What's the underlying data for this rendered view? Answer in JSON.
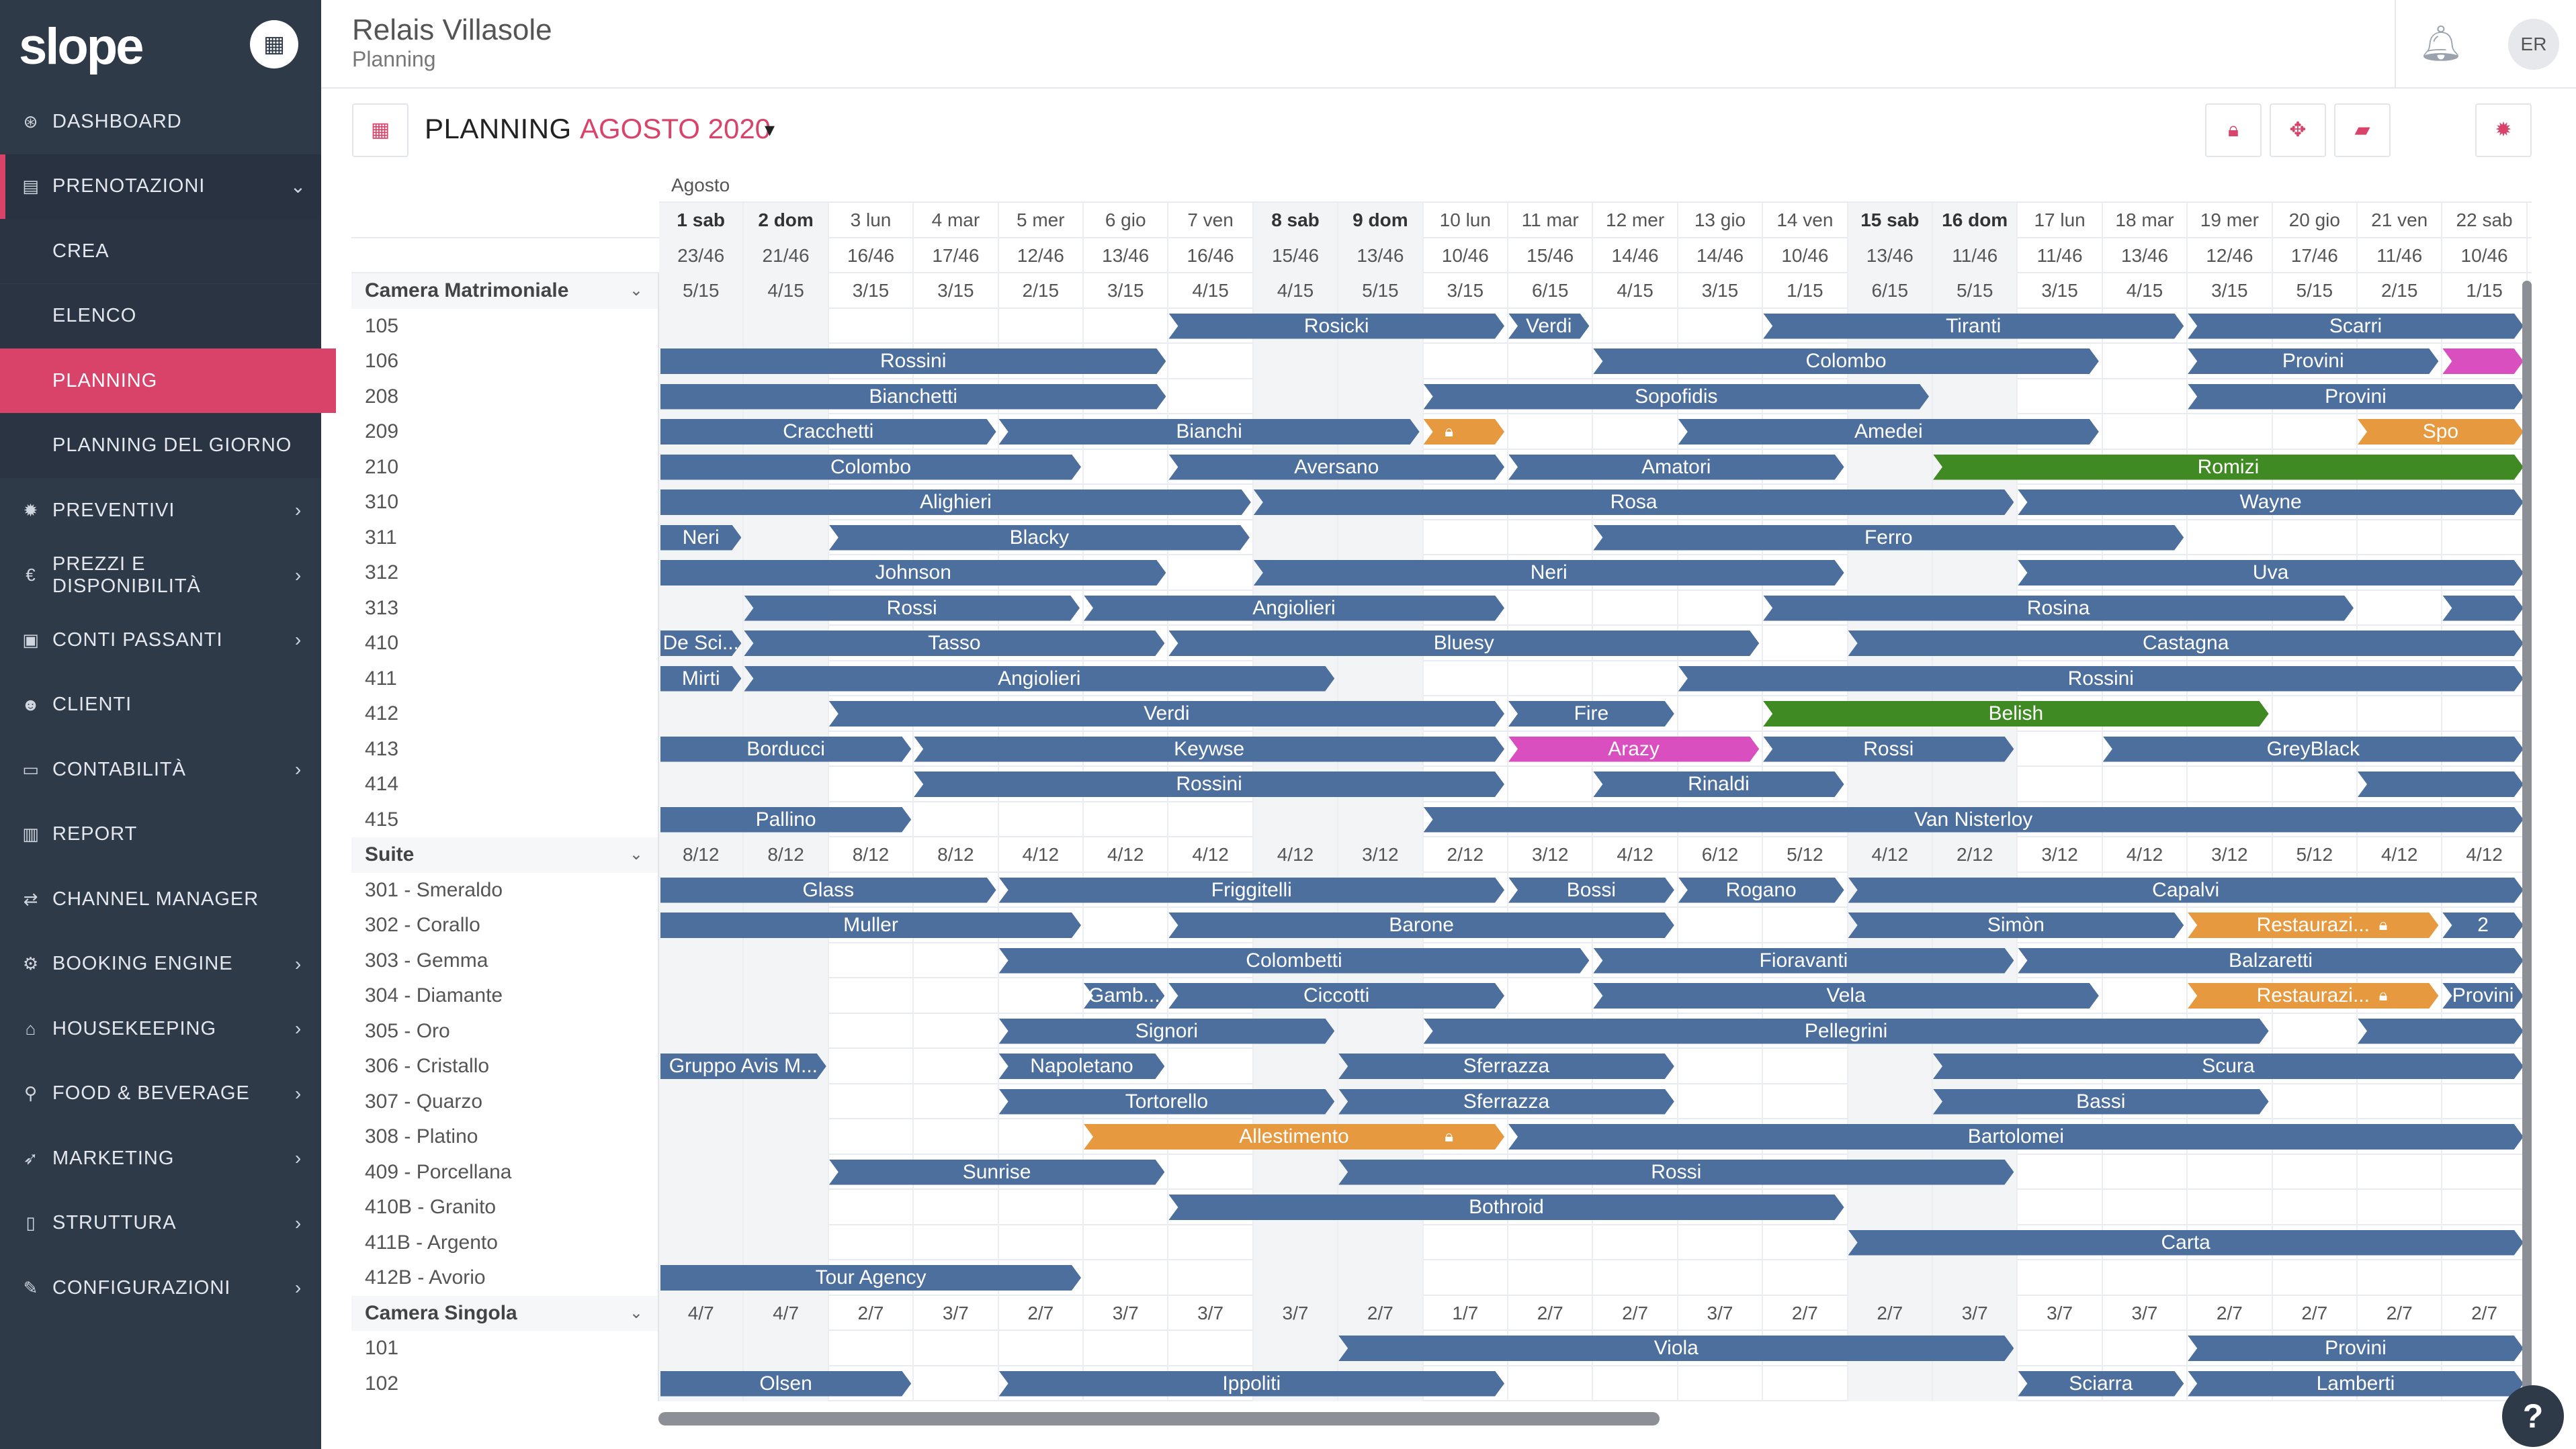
{
  "brand": {
    "logo": "slope",
    "calendar_icon": "calendar-icon"
  },
  "header": {
    "hotel": "Relais Villasole",
    "section": "Planning",
    "avatar": "ER"
  },
  "sidebar": [
    {
      "label": "DASHBOARD",
      "icon": "dashboard-icon",
      "glyph": "⊛",
      "chev": ""
    },
    {
      "label": "PRENOTAZIONI",
      "icon": "book-icon",
      "glyph": "▤",
      "chev": "⌄",
      "state": "open"
    },
    {
      "label": "CREA",
      "sub": true
    },
    {
      "label": "ELENCO",
      "sub": true
    },
    {
      "label": "PLANNING",
      "sub": true,
      "state": "active"
    },
    {
      "label": "PLANNING DEL GIORNO",
      "sub": true
    },
    {
      "label": "PREVENTIVI",
      "icon": "gear-icon",
      "glyph": "✹",
      "chev": "›"
    },
    {
      "label": "PREZZI E DISPONIBILITÀ",
      "icon": "euro-icon",
      "glyph": "€",
      "chev": "›"
    },
    {
      "label": "CONTI PASSANTI",
      "icon": "briefcase-icon",
      "glyph": "▣",
      "chev": "›"
    },
    {
      "label": "CLIENTI",
      "icon": "users-icon",
      "glyph": "☻",
      "chev": ""
    },
    {
      "label": "CONTABILITÀ",
      "icon": "money-icon",
      "glyph": "▭",
      "chev": "›"
    },
    {
      "label": "REPORT",
      "icon": "bar-chart-icon",
      "glyph": "▥",
      "chev": ""
    },
    {
      "label": "CHANNEL MANAGER",
      "icon": "exchange-icon",
      "glyph": "⇄",
      "chev": ""
    },
    {
      "label": "BOOKING ENGINE",
      "icon": "cogs-icon",
      "glyph": "⚙",
      "chev": "›"
    },
    {
      "label": "HOUSEKEEPING",
      "icon": "home-icon",
      "glyph": "⌂",
      "chev": "›"
    },
    {
      "label": "FOOD & BEVERAGE",
      "icon": "cutlery-icon",
      "glyph": "⚲",
      "chev": "›"
    },
    {
      "label": "MARKETING",
      "icon": "rocket-icon",
      "glyph": "➶",
      "chev": "›"
    },
    {
      "label": "STRUTTURA",
      "icon": "building-icon",
      "glyph": "▯",
      "chev": "›"
    },
    {
      "label": "CONFIGURAZIONI",
      "icon": "wrench-icon",
      "glyph": "✎",
      "chev": "›"
    }
  ],
  "toolbar": {
    "title": "PLANNING",
    "month": "AGOSTO 2020",
    "caret": "▾",
    "buttons": [
      "lock-icon",
      "move-icon",
      "eraser-icon"
    ],
    "settings": "settings-icon",
    "calendar": "calendar-icon"
  },
  "colors": {
    "accent": "#d9436a",
    "sidebar": "#2f3a49",
    "bar_blue": "#4d6f9e",
    "bar_green": "#3f8a22",
    "bar_pink": "#d94fc0",
    "bar_orange": "#e6993f"
  },
  "grid": {
    "month_label": "Agosto",
    "days": [
      "1 sab",
      "2 dom",
      "3 lun",
      "4 mar",
      "5 mer",
      "6 gio",
      "7 ven",
      "8 sab",
      "9 dom",
      "10 lun",
      "11 mar",
      "12 mer",
      "13 gio",
      "14 ven",
      "15 sab",
      "16 dom",
      "17 lun",
      "18 mar",
      "19 mer",
      "20 gio",
      "21 ven",
      "22 sab"
    ],
    "occupancy": [
      "23/46",
      "21/46",
      "16/46",
      "17/46",
      "12/46",
      "13/46",
      "16/46",
      "15/46",
      "13/46",
      "10/46",
      "15/46",
      "14/46",
      "14/46",
      "10/46",
      "13/46",
      "11/46",
      "11/46",
      "13/46",
      "12/46",
      "17/46",
      "11/46",
      "10/46"
    ],
    "categories": [
      {
        "name": "Camera Matrimoniale",
        "avail": [
          "5/15",
          "4/15",
          "3/15",
          "3/15",
          "2/15",
          "3/15",
          "4/15",
          "4/15",
          "5/15",
          "3/15",
          "6/15",
          "4/15",
          "3/15",
          "1/15",
          "6/15",
          "5/15",
          "3/15",
          "4/15",
          "3/15",
          "5/15",
          "2/15",
          "1/15"
        ],
        "rooms": [
          {
            "name": "105",
            "bars": [
              [
                6,
                10,
                "Rosicki",
                "blue"
              ],
              [
                10,
                11,
                "Verdi",
                "blue"
              ],
              [
                13,
                18,
                "Tiranti",
                "blue"
              ],
              [
                18,
                22,
                "Scarri",
                "blue"
              ]
            ]
          },
          {
            "name": "106",
            "bars": [
              [
                0,
                6,
                "Rossini",
                "blue"
              ],
              [
                11,
                17,
                "Colombo",
                "blue"
              ],
              [
                18,
                21,
                "Provini",
                "blue"
              ],
              [
                21,
                22,
                "",
                "pink"
              ]
            ]
          },
          {
            "name": "208",
            "bars": [
              [
                0,
                6,
                "Bianchetti",
                "blue"
              ],
              [
                9,
                15,
                "Sopofidis",
                "blue"
              ],
              [
                18,
                22,
                "Provini",
                "blue"
              ]
            ]
          },
          {
            "name": "209",
            "bars": [
              [
                0,
                4,
                "Cracchetti",
                "blue"
              ],
              [
                4,
                9,
                "Bianchi",
                "blue"
              ],
              [
                9,
                10,
                "",
                "orange",
                true
              ],
              [
                12,
                17,
                "Amedei",
                "blue"
              ],
              [
                20,
                22,
                "Spo",
                "orange"
              ]
            ]
          },
          {
            "name": "210",
            "bars": [
              [
                0,
                5,
                "Colombo",
                "blue"
              ],
              [
                6,
                10,
                "Aversano",
                "blue"
              ],
              [
                10,
                14,
                "Amatori",
                "blue"
              ],
              [
                15,
                22,
                "Romizi",
                "green"
              ]
            ]
          },
          {
            "name": "310",
            "bars": [
              [
                0,
                7,
                "Alighieri",
                "blue"
              ],
              [
                7,
                16,
                "Rosa",
                "blue"
              ],
              [
                16,
                22,
                "Wayne",
                "blue"
              ]
            ]
          },
          {
            "name": "311",
            "bars": [
              [
                0,
                1,
                "Neri",
                "blue"
              ],
              [
                2,
                7,
                "Blacky",
                "blue"
              ],
              [
                11,
                18,
                "Ferro",
                "blue"
              ]
            ]
          },
          {
            "name": "312",
            "bars": [
              [
                0,
                6,
                "Johnson",
                "blue"
              ],
              [
                7,
                14,
                "Neri",
                "blue"
              ],
              [
                16,
                22,
                "Uva",
                "blue"
              ]
            ]
          },
          {
            "name": "313",
            "bars": [
              [
                1,
                5,
                "Rossi",
                "blue"
              ],
              [
                5,
                10,
                "Angiolieri",
                "blue"
              ],
              [
                13,
                20,
                "Rosina",
                "blue"
              ],
              [
                21,
                22,
                "",
                "blue"
              ]
            ]
          },
          {
            "name": "410",
            "bars": [
              [
                0,
                1,
                "De Sci...",
                "blue"
              ],
              [
                1,
                6,
                "Tasso",
                "blue"
              ],
              [
                6,
                13,
                "Bluesy",
                "blue"
              ],
              [
                14,
                22,
                "Castagna",
                "blue"
              ]
            ]
          },
          {
            "name": "411",
            "bars": [
              [
                0,
                1,
                "Mirti",
                "blue"
              ],
              [
                1,
                8,
                "Angiolieri",
                "blue"
              ],
              [
                12,
                22,
                "Rossini",
                "blue"
              ]
            ]
          },
          {
            "name": "412",
            "bars": [
              [
                2,
                10,
                "Verdi",
                "blue"
              ],
              [
                10,
                12,
                "Fire",
                "blue"
              ],
              [
                13,
                19,
                "Belish",
                "green"
              ]
            ]
          },
          {
            "name": "413",
            "bars": [
              [
                0,
                3,
                "Borducci",
                "blue"
              ],
              [
                3,
                10,
                "Keywse",
                "blue"
              ],
              [
                10,
                13,
                "Arazy",
                "pink"
              ],
              [
                13,
                16,
                "Rossi",
                "blue"
              ],
              [
                17,
                22,
                "GreyBlack",
                "blue"
              ]
            ]
          },
          {
            "name": "414",
            "bars": [
              [
                3,
                10,
                "Rossini",
                "blue"
              ],
              [
                11,
                14,
                "Rinaldi",
                "blue"
              ],
              [
                20,
                22,
                "",
                "blue"
              ]
            ]
          },
          {
            "name": "415",
            "bars": [
              [
                0,
                3,
                "Pallino",
                "blue"
              ],
              [
                9,
                22,
                "Van Nisterloy",
                "blue"
              ]
            ]
          }
        ]
      },
      {
        "name": "Suite",
        "avail": [
          "8/12",
          "8/12",
          "8/12",
          "8/12",
          "4/12",
          "4/12",
          "4/12",
          "4/12",
          "3/12",
          "2/12",
          "3/12",
          "4/12",
          "6/12",
          "5/12",
          "4/12",
          "2/12",
          "3/12",
          "4/12",
          "3/12",
          "5/12",
          "4/12",
          "4/12"
        ],
        "rooms": [
          {
            "name": "301 - Smeraldo",
            "bars": [
              [
                0,
                4,
                "Glass",
                "blue"
              ],
              [
                4,
                10,
                "Friggitelli",
                "blue"
              ],
              [
                10,
                12,
                "Bossi",
                "blue"
              ],
              [
                12,
                14,
                "Rogano",
                "blue"
              ],
              [
                14,
                22,
                "Capalvi",
                "blue"
              ]
            ]
          },
          {
            "name": "302 - Corallo",
            "bars": [
              [
                0,
                5,
                "Muller",
                "blue"
              ],
              [
                6,
                12,
                "Barone",
                "blue"
              ],
              [
                14,
                18,
                "Simòn",
                "blue"
              ],
              [
                18,
                21,
                "Restaurazi...",
                "orange",
                true
              ],
              [
                21,
                22,
                "2",
                "blue"
              ]
            ]
          },
          {
            "name": "303 - Gemma",
            "bars": [
              [
                4,
                11,
                "Colombetti",
                "blue"
              ],
              [
                11,
                16,
                "Fioravanti",
                "blue"
              ],
              [
                16,
                22,
                "Balzaretti",
                "blue"
              ]
            ]
          },
          {
            "name": "304 - Diamante",
            "bars": [
              [
                5,
                6,
                "Gamb...",
                "blue"
              ],
              [
                6,
                10,
                "Ciccotti",
                "blue"
              ],
              [
                11,
                17,
                "Vela",
                "blue"
              ],
              [
                18,
                21,
                "Restaurazi...",
                "orange",
                true
              ],
              [
                21,
                22,
                "Provini",
                "blue"
              ]
            ]
          },
          {
            "name": "305 - Oro",
            "bars": [
              [
                4,
                8,
                "Signori",
                "blue"
              ],
              [
                9,
                19,
                "Pellegrini",
                "blue"
              ],
              [
                20,
                22,
                "",
                "blue"
              ]
            ]
          },
          {
            "name": "306 - Cristallo",
            "bars": [
              [
                0,
                2,
                "Gruppo Avis M...",
                "blue"
              ],
              [
                4,
                6,
                "Napoletano",
                "blue"
              ],
              [
                8,
                12,
                "Sferrazza",
                "blue"
              ],
              [
                15,
                22,
                "Scura",
                "blue"
              ]
            ]
          },
          {
            "name": "307 - Quarzo",
            "bars": [
              [
                4,
                8,
                "Tortorello",
                "blue"
              ],
              [
                8,
                12,
                "Sferrazza",
                "blue"
              ],
              [
                15,
                19,
                "Bassi",
                "blue"
              ]
            ]
          },
          {
            "name": "308 - Platino",
            "bars": [
              [
                5,
                10,
                "Allestimento",
                "orange",
                true
              ],
              [
                10,
                22,
                "Bartolomei",
                "blue"
              ]
            ]
          },
          {
            "name": "409 - Porcellana",
            "bars": [
              [
                2,
                6,
                "Sunrise",
                "blue"
              ],
              [
                8,
                16,
                "Rossi",
                "blue"
              ]
            ]
          },
          {
            "name": "410B - Granito",
            "bars": [
              [
                6,
                14,
                "Bothroid",
                "blue"
              ]
            ]
          },
          {
            "name": "411B - Argento",
            "bars": [
              [
                14,
                22,
                "Carta",
                "blue"
              ]
            ]
          },
          {
            "name": "412B - Avorio",
            "bars": [
              [
                0,
                5,
                "Tour Agency",
                "blue"
              ]
            ]
          }
        ]
      },
      {
        "name": "Camera Singola",
        "avail": [
          "4/7",
          "4/7",
          "2/7",
          "3/7",
          "2/7",
          "3/7",
          "3/7",
          "3/7",
          "2/7",
          "1/7",
          "2/7",
          "2/7",
          "3/7",
          "2/7",
          "2/7",
          "3/7",
          "3/7",
          "3/7",
          "2/7",
          "2/7",
          "2/7",
          "2/7"
        ],
        "rooms": [
          {
            "name": "101",
            "bars": [
              [
                8,
                16,
                "Viola",
                "blue"
              ],
              [
                18,
                22,
                "Provini",
                "blue"
              ]
            ]
          },
          {
            "name": "102",
            "bars": [
              [
                0,
                3,
                "Olsen",
                "blue"
              ],
              [
                4,
                10,
                "Ippoliti",
                "blue"
              ],
              [
                16,
                18,
                "Sciarra",
                "blue"
              ],
              [
                18,
                22,
                "Lamberti",
                "blue"
              ]
            ]
          }
        ]
      }
    ]
  },
  "help": "?"
}
